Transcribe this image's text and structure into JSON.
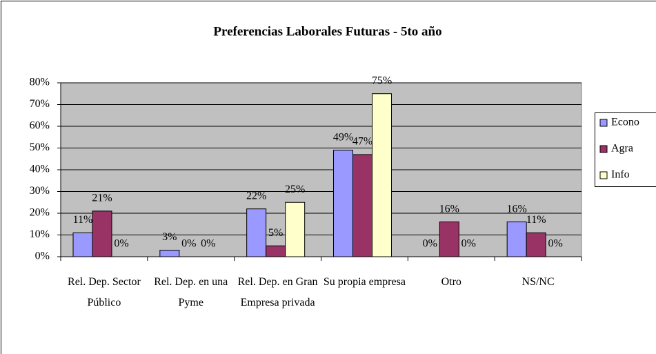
{
  "chart_data": {
    "type": "bar",
    "title": "Preferencias Laborales Futuras - 5to año",
    "categories": [
      "Rel. Dep. Sector Público",
      "Rel. Dep. en una Pyme",
      "Rel. Dep. en Gran Empresa privada",
      "Su propia empresa",
      "Otro",
      "NS/NC"
    ],
    "series": [
      {
        "name": "Econo",
        "color": "#9999ff",
        "values": [
          11,
          3,
          22,
          49,
          0,
          16
        ],
        "value_labels": [
          "11%",
          "3%",
          "22%",
          "49%",
          "0%",
          "16%"
        ]
      },
      {
        "name": "Agra",
        "color": "#993366",
        "values": [
          21,
          0,
          5,
          47,
          16,
          11
        ],
        "value_labels": [
          "21%",
          "0%",
          "5%",
          "47%",
          "16%",
          "11%"
        ]
      },
      {
        "name": "Info",
        "color": "#ffffcc",
        "values": [
          0,
          0,
          25,
          75,
          0,
          0
        ],
        "value_labels": [
          "0%",
          "0%",
          "25%",
          "75%",
          "0%",
          "0%"
        ]
      }
    ],
    "ylim": [
      0,
      80
    ],
    "yticks": [
      {
        "value": 0,
        "label": "0%"
      },
      {
        "value": 10,
        "label": "10%"
      },
      {
        "value": 20,
        "label": "20%"
      },
      {
        "value": 30,
        "label": "30%"
      },
      {
        "value": 40,
        "label": "40%"
      },
      {
        "value": 50,
        "label": "50%"
      },
      {
        "value": 60,
        "label": "60%"
      },
      {
        "value": 70,
        "label": "70%"
      },
      {
        "value": 80,
        "label": "80%"
      }
    ],
    "grid": true,
    "legend": "right"
  }
}
